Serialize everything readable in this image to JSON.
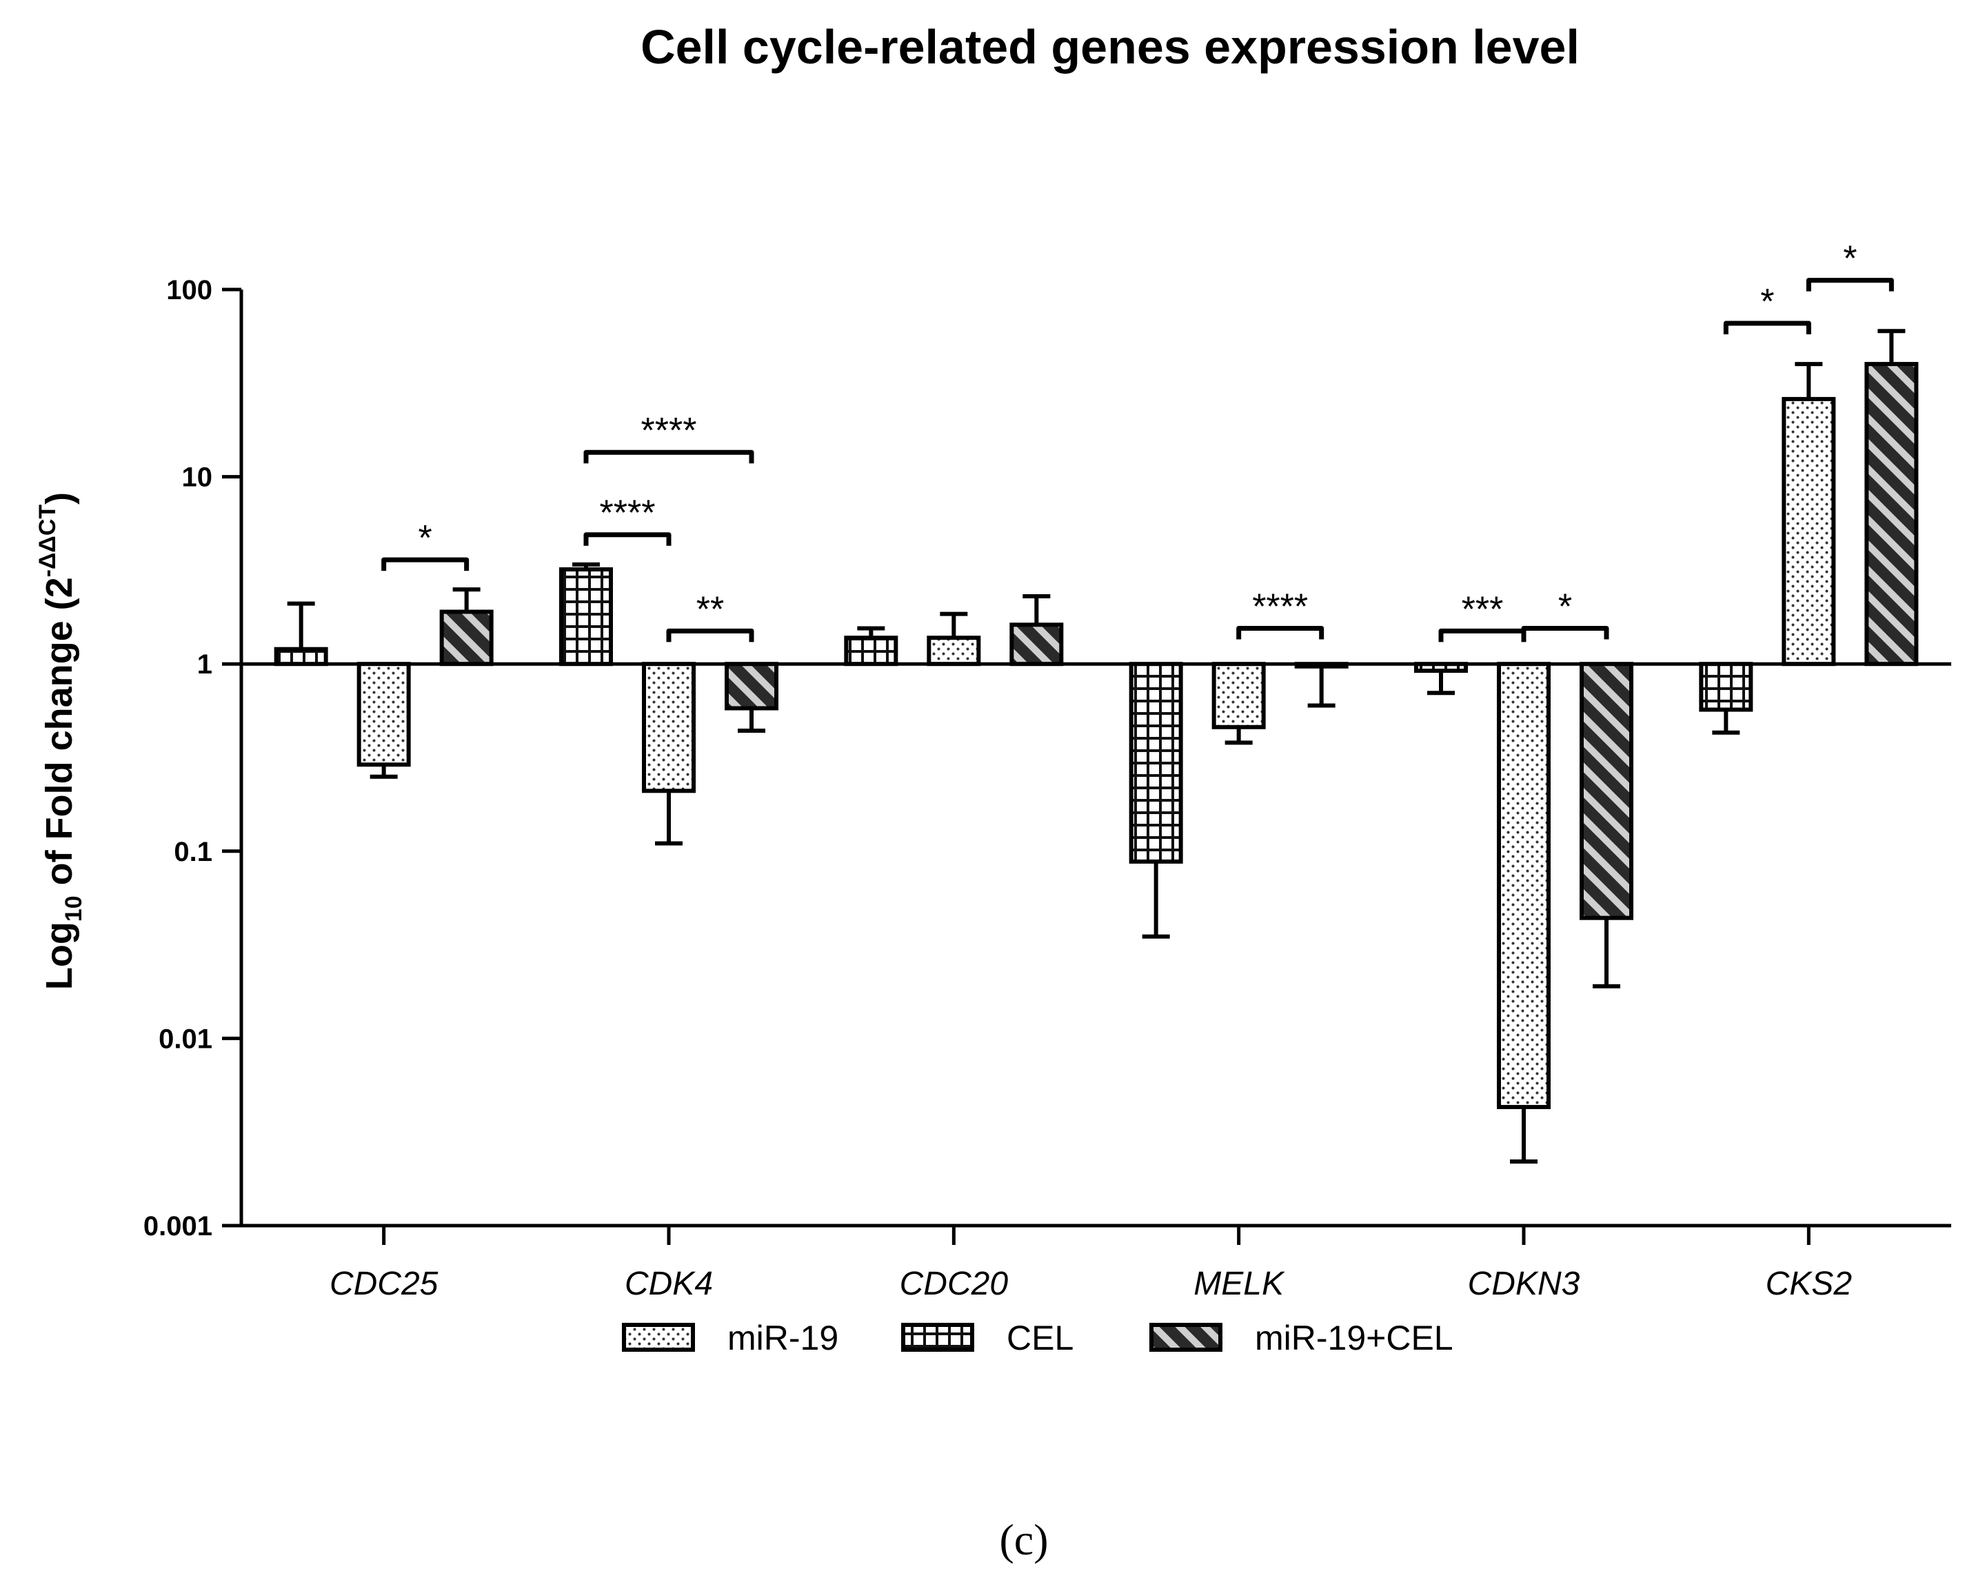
{
  "chart_data": {
    "type": "bar",
    "title": "Cell cycle-related genes expression level",
    "ylabel": {
      "base": "Log",
      "sub": "10",
      "mid": " of Fold change (2",
      "sup": "-ΔΔCT",
      "end": ")"
    },
    "yscale": "log",
    "ylim": [
      0.001,
      100
    ],
    "baseline": 1,
    "yticks": [
      {
        "value": 100,
        "label": "100"
      },
      {
        "value": 10,
        "label": "10"
      },
      {
        "value": 1,
        "label": "1"
      },
      {
        "value": 0.1,
        "label": "0.1"
      },
      {
        "value": 0.01,
        "label": "0.01"
      },
      {
        "value": 0.001,
        "label": "0.001"
      }
    ],
    "categories": [
      "CDC25",
      "CDK4",
      "CDC20",
      "MELK",
      "CDKN3",
      "CKS2"
    ],
    "bar_order": [
      "CEL",
      "miR-19",
      "miR-19+CEL"
    ],
    "series": [
      {
        "name": "miR-19",
        "pattern": "dots",
        "values": [
          0.29,
          0.21,
          1.38,
          0.46,
          0.0043,
          26
        ],
        "err": [
          0.25,
          0.11,
          1.85,
          0.38,
          0.0022,
          40
        ]
      },
      {
        "name": "CEL",
        "pattern": "grid",
        "values": [
          1.2,
          3.2,
          1.38,
          0.088,
          0.92,
          0.57
        ],
        "err": [
          2.1,
          3.4,
          1.55,
          0.035,
          0.7,
          0.43
        ]
      },
      {
        "name": "miR-19+CEL",
        "pattern": "hatch",
        "values": [
          1.9,
          0.58,
          1.62,
          0.97,
          0.044,
          40
        ],
        "err": [
          2.5,
          0.44,
          2.3,
          0.6,
          0.019,
          60
        ]
      }
    ],
    "legend": {
      "placement": "bottom",
      "entries": [
        "miR-19",
        "CEL",
        "miR-19+CEL"
      ]
    },
    "significance": [
      {
        "category": 0,
        "from": "miR-19",
        "to": "miR-19+CEL",
        "label": "*",
        "y": 3.6
      },
      {
        "category": 1,
        "from": "CEL",
        "to": "miR-19",
        "label": "****",
        "y": 4.9
      },
      {
        "category": 1,
        "from": "CEL",
        "to": "miR-19+CEL",
        "label": "****",
        "y": 13.5
      },
      {
        "category": 1,
        "from": "miR-19",
        "to": "miR-19+CEL",
        "label": "**",
        "y": 1.5
      },
      {
        "category": 3,
        "from": "miR-19",
        "to": "miR-19+CEL",
        "label": "****",
        "y": 1.55
      },
      {
        "category": 4,
        "from": "CEL",
        "to": "miR-19",
        "label": "***",
        "y": 1.5
      },
      {
        "category": 4,
        "from": "miR-19",
        "to": "miR-19+CEL",
        "label": "*",
        "y": 1.55
      },
      {
        "category": 5,
        "from": "CEL",
        "to": "miR-19",
        "label": "*",
        "y": 66
      },
      {
        "category": 5,
        "from": "miR-19",
        "to": "miR-19+CEL",
        "label": "*",
        "y": 112
      }
    ]
  },
  "panel_label": "(c)"
}
